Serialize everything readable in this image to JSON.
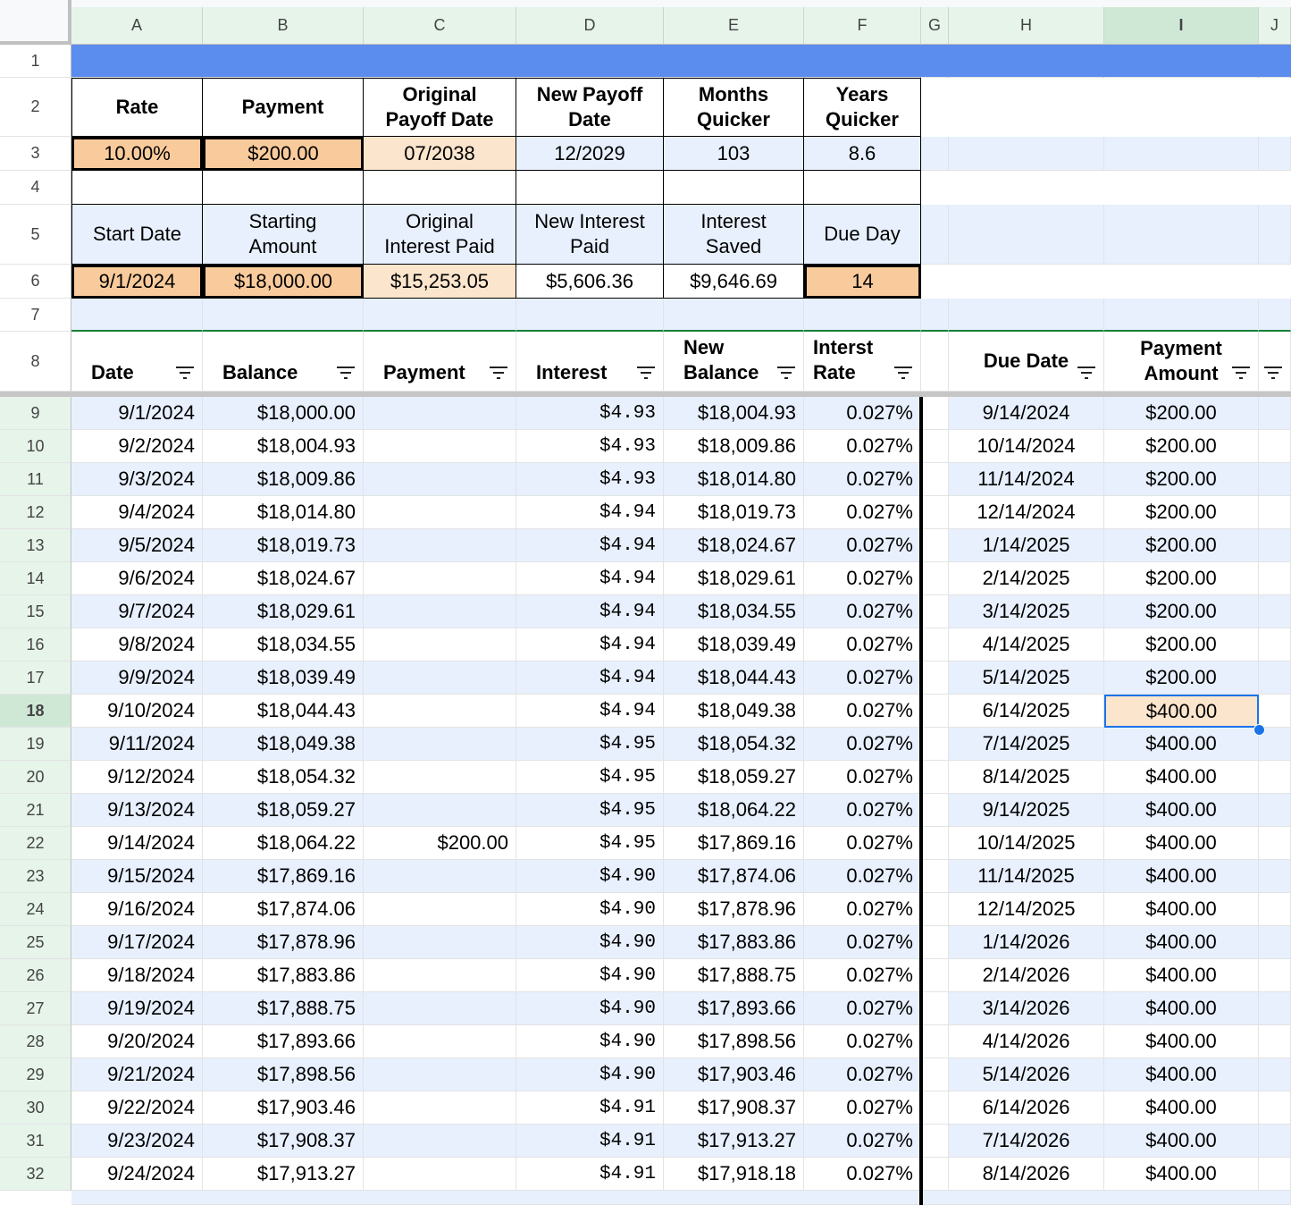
{
  "columns": [
    "A",
    "B",
    "C",
    "D",
    "E",
    "F",
    "G",
    "H",
    "I",
    "J"
  ],
  "row_numbers": [
    1,
    2,
    3,
    4,
    5,
    6,
    7,
    8,
    9,
    10,
    11,
    12,
    13,
    14,
    15,
    16,
    17,
    18,
    19,
    20,
    21,
    22,
    23,
    24,
    25,
    26,
    27,
    28,
    29,
    30,
    31,
    32
  ],
  "summary": {
    "header_row_1": [
      "Rate",
      "Payment",
      "Original Payoff Date",
      "New Payoff Date",
      "Months Quicker",
      "Years Quicker"
    ],
    "value_row_1": [
      "10.00%",
      "$200.00",
      "07/2038",
      "12/2029",
      "103",
      "8.6"
    ],
    "header_row_2": [
      "Start Date",
      "Starting Amount",
      "Original Interest Paid",
      "New Interest Paid",
      "Interest Saved",
      "Due Day"
    ],
    "value_row_2": [
      "9/1/2024",
      "$18,000.00",
      "$15,253.05",
      "$5,606.36",
      "$9,646.69",
      "14"
    ]
  },
  "ledger": {
    "headers": [
      "Date",
      "Balance",
      "Payment",
      "Interest",
      "New Balance",
      "Interst Rate"
    ],
    "rows": [
      [
        "9/1/2024",
        "$18,000.00",
        null,
        "$4.93",
        "$18,004.93",
        "0.027%"
      ],
      [
        "9/2/2024",
        "$18,004.93",
        null,
        "$4.93",
        "$18,009.86",
        "0.027%"
      ],
      [
        "9/3/2024",
        "$18,009.86",
        null,
        "$4.93",
        "$18,014.80",
        "0.027%"
      ],
      [
        "9/4/2024",
        "$18,014.80",
        null,
        "$4.94",
        "$18,019.73",
        "0.027%"
      ],
      [
        "9/5/2024",
        "$18,019.73",
        null,
        "$4.94",
        "$18,024.67",
        "0.027%"
      ],
      [
        "9/6/2024",
        "$18,024.67",
        null,
        "$4.94",
        "$18,029.61",
        "0.027%"
      ],
      [
        "9/7/2024",
        "$18,029.61",
        null,
        "$4.94",
        "$18,034.55",
        "0.027%"
      ],
      [
        "9/8/2024",
        "$18,034.55",
        null,
        "$4.94",
        "$18,039.49",
        "0.027%"
      ],
      [
        "9/9/2024",
        "$18,039.49",
        null,
        "$4.94",
        "$18,044.43",
        "0.027%"
      ],
      [
        "9/10/2024",
        "$18,044.43",
        null,
        "$4.94",
        "$18,049.38",
        "0.027%"
      ],
      [
        "9/11/2024",
        "$18,049.38",
        null,
        "$4.95",
        "$18,054.32",
        "0.027%"
      ],
      [
        "9/12/2024",
        "$18,054.32",
        null,
        "$4.95",
        "$18,059.27",
        "0.027%"
      ],
      [
        "9/13/2024",
        "$18,059.27",
        null,
        "$4.95",
        "$18,064.22",
        "0.027%"
      ],
      [
        "9/14/2024",
        "$18,064.22",
        "$200.00",
        "$4.95",
        "$17,869.16",
        "0.027%"
      ],
      [
        "9/15/2024",
        "$17,869.16",
        null,
        "$4.90",
        "$17,874.06",
        "0.027%"
      ],
      [
        "9/16/2024",
        "$17,874.06",
        null,
        "$4.90",
        "$17,878.96",
        "0.027%"
      ],
      [
        "9/17/2024",
        "$17,878.96",
        null,
        "$4.90",
        "$17,883.86",
        "0.027%"
      ],
      [
        "9/18/2024",
        "$17,883.86",
        null,
        "$4.90",
        "$17,888.75",
        "0.027%"
      ],
      [
        "9/19/2024",
        "$17,888.75",
        null,
        "$4.90",
        "$17,893.66",
        "0.027%"
      ],
      [
        "9/20/2024",
        "$17,893.66",
        null,
        "$4.90",
        "$17,898.56",
        "0.027%"
      ],
      [
        "9/21/2024",
        "$17,898.56",
        null,
        "$4.90",
        "$17,903.46",
        "0.027%"
      ],
      [
        "9/22/2024",
        "$17,903.46",
        null,
        "$4.91",
        "$17,908.37",
        "0.027%"
      ],
      [
        "9/23/2024",
        "$17,908.37",
        null,
        "$4.91",
        "$17,913.27",
        "0.027%"
      ],
      [
        "9/24/2024",
        "$17,913.27",
        null,
        "$4.91",
        "$17,918.18",
        "0.027%"
      ]
    ]
  },
  "schedule": {
    "headers": [
      "Due Date",
      "Payment Amount"
    ],
    "rows": [
      [
        "9/14/2024",
        "$200.00"
      ],
      [
        "10/14/2024",
        "$200.00"
      ],
      [
        "11/14/2024",
        "$200.00"
      ],
      [
        "12/14/2024",
        "$200.00"
      ],
      [
        "1/14/2025",
        "$200.00"
      ],
      [
        "2/14/2025",
        "$200.00"
      ],
      [
        "3/14/2025",
        "$200.00"
      ],
      [
        "4/14/2025",
        "$200.00"
      ],
      [
        "5/14/2025",
        "$200.00"
      ],
      [
        "6/14/2025",
        "$400.00"
      ],
      [
        "7/14/2025",
        "$400.00"
      ],
      [
        "8/14/2025",
        "$400.00"
      ],
      [
        "9/14/2025",
        "$400.00"
      ],
      [
        "10/14/2025",
        "$400.00"
      ],
      [
        "11/14/2025",
        "$400.00"
      ],
      [
        "12/14/2025",
        "$400.00"
      ],
      [
        "1/14/2026",
        "$400.00"
      ],
      [
        "2/14/2026",
        "$400.00"
      ],
      [
        "3/14/2026",
        "$400.00"
      ],
      [
        "4/14/2026",
        "$400.00"
      ],
      [
        "5/14/2026",
        "$400.00"
      ],
      [
        "6/14/2026",
        "$400.00"
      ],
      [
        "7/14/2026",
        "$400.00"
      ],
      [
        "8/14/2026",
        "$400.00"
      ]
    ]
  }
}
